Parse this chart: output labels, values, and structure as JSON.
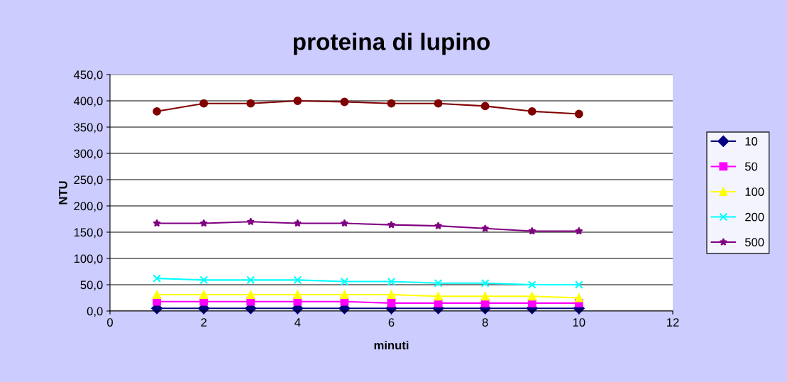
{
  "chart_data": {
    "type": "line",
    "title": "proteina di lupino",
    "xlabel": "minuti",
    "ylabel": "NTU",
    "x": [
      1,
      2,
      3,
      4,
      5,
      6,
      7,
      8,
      9,
      10
    ],
    "series": [
      {
        "name": "10",
        "color": "#000080",
        "marker": "diamond",
        "values": [
          5,
          5,
          5,
          5,
          5,
          5,
          5,
          5,
          5,
          5
        ]
      },
      {
        "name": "50",
        "color": "#ff00ff",
        "marker": "square",
        "values": [
          18,
          18,
          18,
          18,
          18,
          15,
          15,
          15,
          15,
          15
        ]
      },
      {
        "name": "100",
        "color": "#ffff00",
        "marker": "triangle",
        "values": [
          31,
          31,
          31,
          31,
          31,
          31,
          28,
          28,
          28,
          25
        ]
      },
      {
        "name": "200",
        "color": "#00ffff",
        "marker": "cross",
        "values": [
          62,
          59,
          59,
          59,
          56,
          56,
          53,
          53,
          50,
          50
        ]
      },
      {
        "name": "500",
        "color": "#800080",
        "marker": "star",
        "values": [
          167,
          167,
          170,
          167,
          167,
          164,
          162,
          157,
          152,
          152
        ]
      },
      {
        "color": "#800000",
        "marker": "circle",
        "values": [
          380,
          395,
          395,
          400,
          398,
          395,
          395,
          390,
          380,
          375
        ]
      }
    ],
    "xlim": [
      0,
      12
    ],
    "xticks": [
      0,
      2,
      4,
      6,
      8,
      10,
      12
    ],
    "ylim": [
      0,
      450
    ],
    "yticks": [
      {
        "value": 0,
        "label": "0,0"
      },
      {
        "value": 50,
        "label": "50,0"
      },
      {
        "value": 100,
        "label": "100,0"
      },
      {
        "value": 150,
        "label": "150,0"
      },
      {
        "value": 200,
        "label": "200,0"
      },
      {
        "value": 250,
        "label": "250,0"
      },
      {
        "value": 300,
        "label": "300,0"
      },
      {
        "value": 350,
        "label": "350,0"
      },
      {
        "value": 400,
        "label": "400,0"
      },
      {
        "value": 450,
        "label": "450,0"
      }
    ],
    "grid": "y",
    "legend": "right",
    "line_style": "solid"
  }
}
